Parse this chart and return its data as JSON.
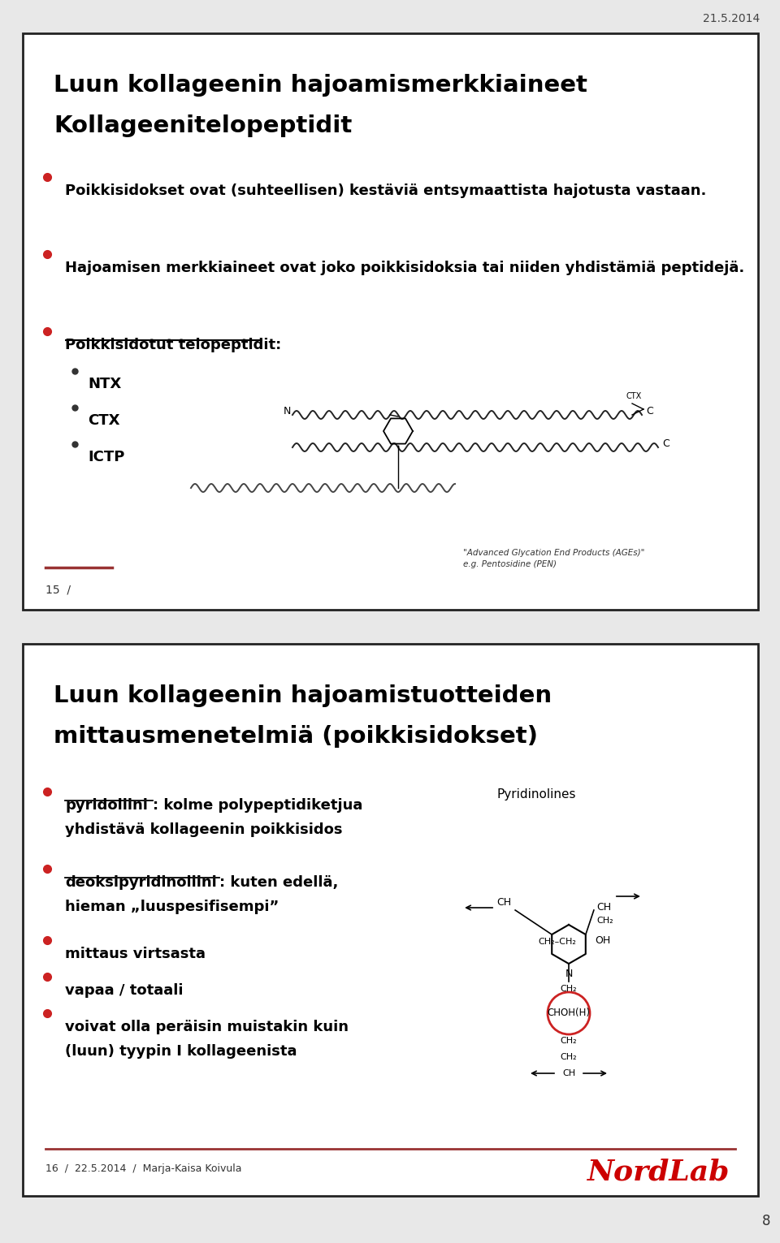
{
  "bg_color": "#e8e8e8",
  "date_text": "21.5.2014",
  "page_number": "8",
  "slide1": {
    "title_line1": "Luun kollageenin hajoamismerkkiaineet",
    "title_line2": "Kollageenitelopeptidit",
    "bullet1": "Poikkisidokset ovat (suhteellisen) kestäviä entsymaattista hajotusta vastaan.",
    "bullet2": "Hajoamisen merkkiaineet ovat joko poikkisidoksia tai niiden yhdistämiä peptidejä.",
    "bullet3": "Poikkisidotut telopeptidit:",
    "sub_bullets": [
      "NTX",
      "CTX",
      "ICTP"
    ],
    "footer_num": "15  /",
    "footer_note_line1": "\"Advanced Glycation End Products (AGEs)\"",
    "footer_note_line2": "e.g. Pentosidine (PEN)"
  },
  "slide2": {
    "title_line1": "Luun kollageenin hajoamistuotteiden",
    "title_line2": "mittausmenetelmiä (poikkisidokset)",
    "b1_ul": "pyridoliini",
    "b1_rest": ": kolme polypeptidiketjua yhdistävä kollageenin poikkisidos",
    "b2_ul": "deoksipyridinoliini",
    "b2_rest": ": kuten edellä, hieman „luuspesifisempi”",
    "b3": "mittaus virtsasta",
    "b4": "vapaa / totaali",
    "b5_line1": "voivat olla peräisin muistakin kuin",
    "b5_line2": "(luun) tyypin I kollageenista",
    "pyridinolines_label": "Pyridinolines",
    "footer_left": "16  /  22.5.2014  /  Marja-Kaisa Koivula",
    "nordlab_text": "NordLab",
    "nordlab_color": "#cc0000"
  }
}
